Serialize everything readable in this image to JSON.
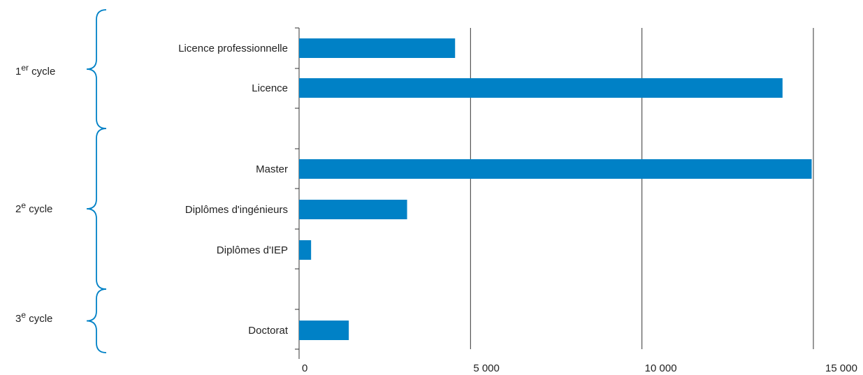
{
  "chart_data": {
    "type": "bar",
    "orientation": "horizontal",
    "categories": [
      "Licence professionnelle",
      "Licence",
      "Master",
      "Diplômes d'ingénieurs",
      "Diplômes d'IEP",
      "Doctorat"
    ],
    "values": [
      4550,
      14100,
      14950,
      3150,
      350,
      1450
    ],
    "groups": [
      {
        "num": "1",
        "sup": "er",
        "word": "cycle",
        "categories": [
          "Licence professionnelle",
          "Licence"
        ]
      },
      {
        "num": "2",
        "sup": "e",
        "word": "cycle",
        "categories": [
          "Master",
          "Diplômes d'ingénieurs",
          "Diplômes d'IEP"
        ]
      },
      {
        "num": "3",
        "sup": "e",
        "word": "cycle",
        "categories": [
          "Doctorat"
        ]
      }
    ],
    "xticks": [
      0,
      5000,
      10000,
      15000
    ],
    "xtick_labels": [
      "0",
      "5 000",
      "10 000",
      "15 000"
    ],
    "xlim": [
      0,
      15000
    ],
    "grid": true,
    "bar_color": "#0081C6",
    "brace_color": "#0081C6",
    "title": "",
    "xlabel": "",
    "ylabel": ""
  }
}
